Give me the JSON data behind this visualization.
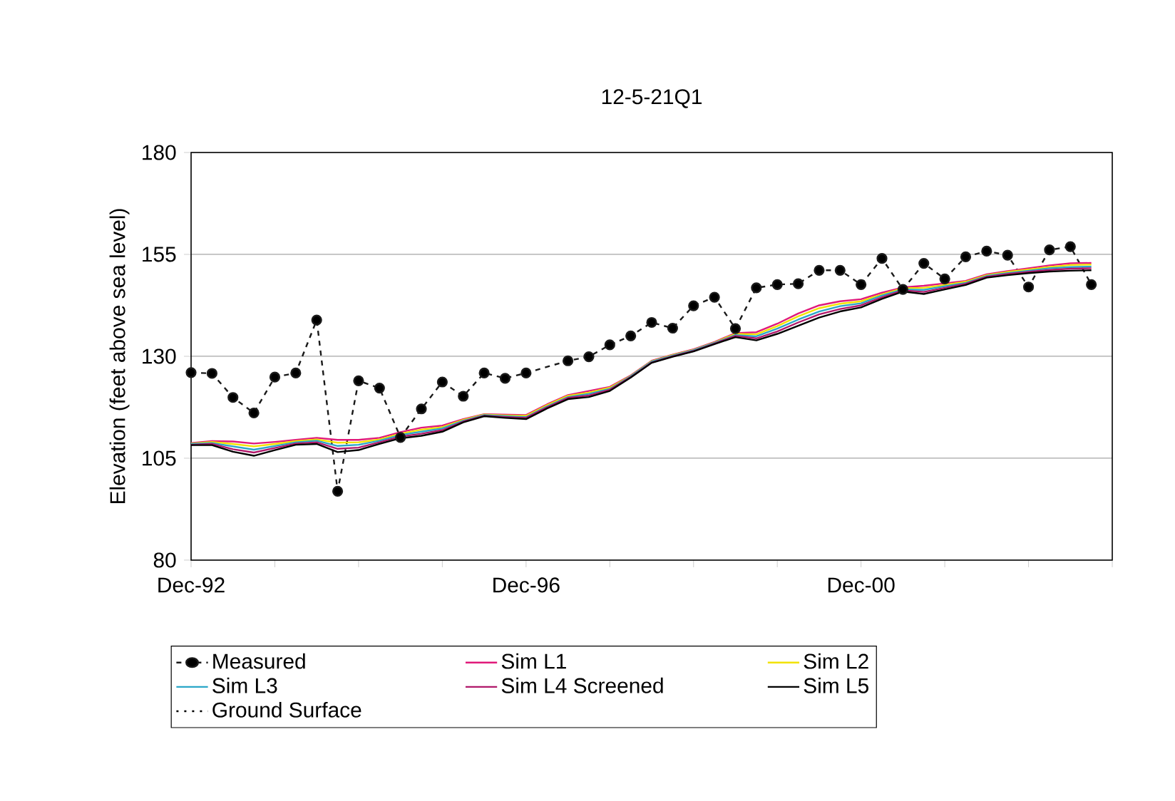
{
  "chart_data": {
    "type": "line",
    "title": "12-5-21Q1",
    "ylabel": "Elevation (feet above sea level)",
    "xlim": [
      "1992-12",
      "2003-12"
    ],
    "ylim": [
      80,
      180
    ],
    "yticks": [
      80,
      105,
      130,
      155,
      180
    ],
    "xticks": [
      {
        "value": "1992-12",
        "label": "Dec-92"
      },
      {
        "value": "1993-12",
        "label": null
      },
      {
        "value": "1994-12",
        "label": null
      },
      {
        "value": "1995-12",
        "label": null
      },
      {
        "value": "1996-12",
        "label": "Dec-96"
      },
      {
        "value": "1997-12",
        "label": null
      },
      {
        "value": "1998-12",
        "label": null
      },
      {
        "value": "1999-12",
        "label": null
      },
      {
        "value": "2000-12",
        "label": "Dec-00"
      },
      {
        "value": "2001-12",
        "label": null
      },
      {
        "value": "2002-12",
        "label": null
      },
      {
        "value": "2003-12",
        "label": null
      }
    ],
    "grid": "y",
    "legend": "bottom",
    "series": [
      {
        "name": "Measured",
        "color": "#1a1a1a",
        "marker": "circle",
        "line_style": "dashed",
        "x": [
          "1992-12",
          "1993-03",
          "1993-06",
          "1993-09",
          "1993-12",
          "1994-03",
          "1994-06",
          "1994-09",
          "1994-12",
          "1995-03",
          "1995-06",
          "1995-09",
          "1995-12",
          "1996-03",
          "1996-06",
          "1996-09",
          "1996-12",
          "1997-06",
          "1997-09",
          "1997-12",
          "1998-03",
          "1998-06",
          "1998-09",
          "1998-12",
          "1999-03",
          "1999-06",
          "1999-09",
          "1999-12",
          "2000-03",
          "2000-06",
          "2000-09",
          "2000-12",
          "2001-03",
          "2001-06",
          "2001-09",
          "2001-12",
          "2002-03",
          "2002-06",
          "2002-09",
          "2002-12",
          "2003-03",
          "2003-06",
          "2003-09"
        ],
        "values": [
          126.0,
          125.8,
          119.9,
          116.1,
          124.9,
          125.9,
          138.9,
          96.9,
          124.0,
          122.2,
          110.1,
          117.1,
          123.7,
          120.2,
          125.9,
          124.6,
          125.9,
          128.9,
          129.9,
          132.8,
          135.0,
          138.3,
          136.9,
          142.4,
          144.5,
          136.8,
          146.8,
          147.6,
          147.8,
          151.1,
          151.1,
          147.6,
          154.0,
          146.4,
          152.8,
          149.0,
          154.4,
          155.8,
          154.8,
          147.0,
          156.1,
          156.9,
          147.6
        ]
      },
      {
        "name": "Sim L1",
        "color": "#e0197a",
        "marker": "none",
        "line_style": "solid",
        "values": [
          108.7,
          109.2,
          109.1,
          108.6,
          109.0,
          109.5,
          110.0,
          109.5,
          109.5,
          110.0,
          111.4,
          112.5,
          113.0,
          114.6,
          115.8,
          115.7,
          115.6,
          118.2,
          120.5,
          121.5,
          122.5,
          125.3,
          128.9,
          130.4,
          131.7,
          133.5,
          135.7,
          135.9,
          138.0,
          140.5,
          142.5,
          143.5,
          144.0,
          145.6,
          146.9,
          147.3,
          147.9,
          148.5,
          150.1,
          150.9,
          151.6,
          152.3,
          152.8,
          152.9
        ]
      },
      {
        "name": "Sim L2",
        "color": "#f2e200",
        "marker": "none",
        "line_style": "solid",
        "values": [
          108.6,
          109.0,
          108.5,
          107.9,
          108.5,
          109.2,
          109.6,
          108.8,
          108.9,
          109.6,
          111.0,
          112.0,
          112.6,
          114.4,
          115.7,
          115.5,
          115.4,
          118.0,
          120.3,
          121.1,
          122.3,
          125.2,
          128.8,
          130.3,
          131.6,
          133.4,
          135.5,
          135.4,
          137.4,
          139.8,
          141.8,
          142.9,
          143.5,
          145.2,
          146.7,
          146.8,
          147.5,
          148.3,
          149.9,
          150.7,
          151.3,
          151.9,
          152.4,
          152.5
        ]
      },
      {
        "name": "Sim L3",
        "color": "#2aa6c8",
        "marker": "none",
        "line_style": "solid",
        "values": [
          108.5,
          108.7,
          107.9,
          107.1,
          108.0,
          108.9,
          109.3,
          108.0,
          108.3,
          109.3,
          110.7,
          111.5,
          112.3,
          114.2,
          115.6,
          115.3,
          115.1,
          117.7,
          120.0,
          120.8,
          122.0,
          125.1,
          128.7,
          130.2,
          131.5,
          133.3,
          135.2,
          134.9,
          136.8,
          139.0,
          141.0,
          142.3,
          143.0,
          144.9,
          146.4,
          146.3,
          147.2,
          148.0,
          149.7,
          150.4,
          151.0,
          151.6,
          151.9,
          152.0
        ]
      },
      {
        "name": "Sim L4 Screened",
        "color": "#b0186a",
        "marker": "none",
        "line_style": "solid",
        "values": [
          108.3,
          108.5,
          107.2,
          106.4,
          107.5,
          108.6,
          108.9,
          107.3,
          107.6,
          108.9,
          110.3,
          111.0,
          111.9,
          114.0,
          115.4,
          115.1,
          114.9,
          117.5,
          119.8,
          120.4,
          121.8,
          124.9,
          128.5,
          130.0,
          131.3,
          133.1,
          135.0,
          134.4,
          136.1,
          138.3,
          140.3,
          141.6,
          142.5,
          144.5,
          146.2,
          145.8,
          146.8,
          147.8,
          149.5,
          150.2,
          150.7,
          151.2,
          151.5,
          151.6
        ]
      },
      {
        "name": "Sim L5",
        "color": "#000000",
        "marker": "none",
        "line_style": "solid",
        "values": [
          108.2,
          108.2,
          106.6,
          105.6,
          107.0,
          108.3,
          108.5,
          106.5,
          107.0,
          108.5,
          109.9,
          110.5,
          111.5,
          113.8,
          115.3,
          114.9,
          114.6,
          117.2,
          119.5,
          120.0,
          121.5,
          124.8,
          128.4,
          129.9,
          131.2,
          133.0,
          134.7,
          133.9,
          135.5,
          137.5,
          139.5,
          141.0,
          142.0,
          144.1,
          145.9,
          145.3,
          146.4,
          147.5,
          149.3,
          149.9,
          150.4,
          150.8,
          151.0,
          151.1
        ]
      },
      {
        "name": "Ground Surface",
        "color": "#000000",
        "marker": "none",
        "line_style": "dotted",
        "values": [
          null,
          null,
          null,
          null,
          null,
          null,
          null,
          null,
          null,
          null,
          null,
          null,
          null,
          null,
          null,
          null,
          null,
          null,
          null,
          null,
          null,
          null,
          null,
          null,
          null,
          null,
          null,
          null,
          null,
          null,
          null,
          null,
          null,
          null,
          null,
          null,
          null,
          null,
          null,
          null,
          null,
          null,
          null,
          null
        ]
      }
    ],
    "x": [
      "1992-12",
      "1993-03",
      "1993-06",
      "1993-09",
      "1993-12",
      "1994-03",
      "1994-06",
      "1994-09",
      "1994-12",
      "1995-03",
      "1995-06",
      "1995-09",
      "1995-12",
      "1996-03",
      "1996-06",
      "1996-09",
      "1996-12",
      "1997-03",
      "1997-06",
      "1997-09",
      "1997-12",
      "1998-03",
      "1998-06",
      "1998-09",
      "1998-12",
      "1999-03",
      "1999-06",
      "1999-09",
      "1999-12",
      "2000-03",
      "2000-06",
      "2000-09",
      "2000-12",
      "2001-03",
      "2001-06",
      "2001-09",
      "2001-12",
      "2002-03",
      "2002-06",
      "2002-09",
      "2002-12",
      "2003-03",
      "2003-06",
      "2003-09"
    ]
  }
}
